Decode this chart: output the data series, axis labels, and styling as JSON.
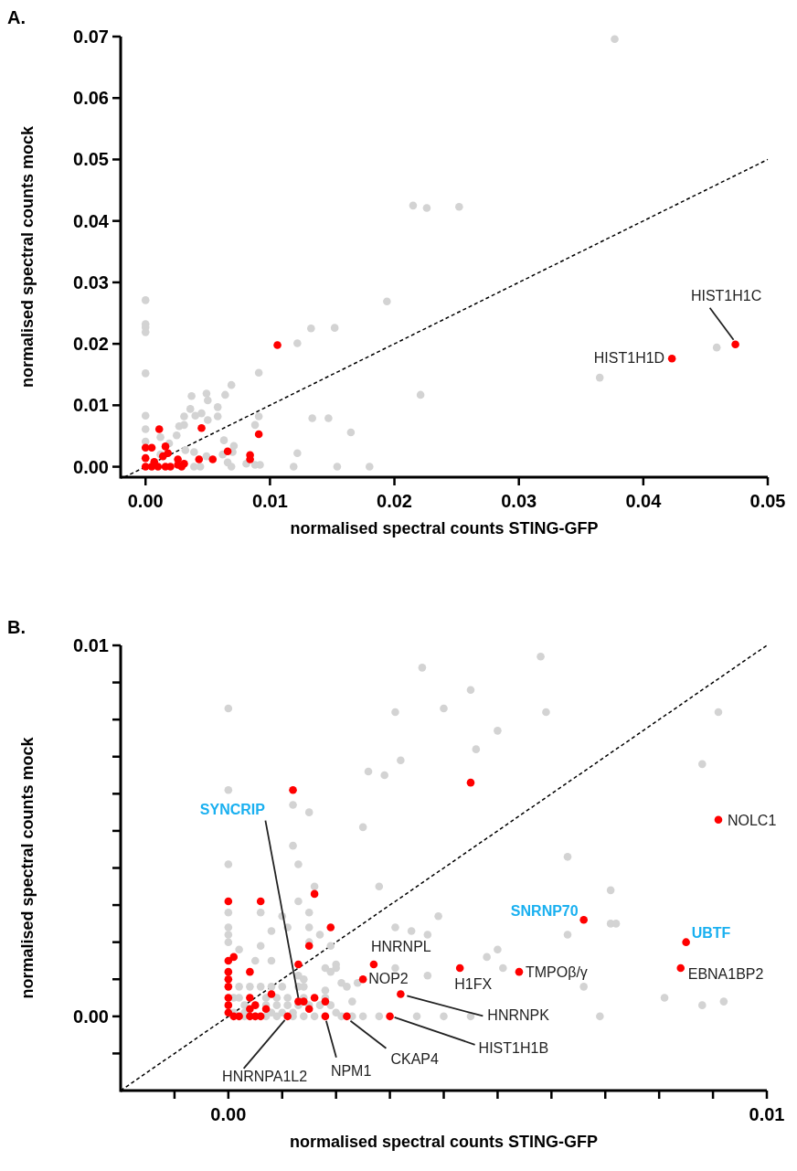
{
  "chart_data": [
    {
      "type": "scatter",
      "title": "A.",
      "xlabel": "normalised spectral counts STING-GFP",
      "ylabel": "normalised spectral counts mock",
      "xlim": [
        -0.002,
        0.05
      ],
      "ylim": [
        -0.0017,
        0.07
      ],
      "xticks": [
        {
          "value": 0,
          "label": "0.00"
        },
        0.01,
        0.02,
        0.03,
        0.04,
        0.05
      ],
      "yticks": [
        {
          "value": 0,
          "label": "0.00"
        },
        0.01,
        0.02,
        0.03,
        0.04,
        0.05,
        0.06,
        0.07
      ],
      "marker": "circle",
      "grid": false,
      "series": [
        {
          "color": "#d3d3d3",
          "x": [
            0.0377,
            0.0215,
            0.0226,
            0.0252,
            0,
            0.0194,
            0,
            0,
            0,
            0.0122,
            0.0459,
            0.0365,
            0,
            0.0091,
            0.0133,
            0.0152,
            0.0069,
            0.0221,
            0.0037,
            0.0049,
            0.0064,
            0.005,
            0.0058,
            0.0036,
            0.0045,
            0.004,
            0.0031,
            0.0058,
            0.005,
            0,
            0.0091,
            0.0134,
            0.0147,
            0.0027,
            0.0031,
            0.0088,
            0.0165,
            0,
            0.0025,
            0.0012,
            0,
            0.0063,
            0.0071,
            0.0122,
            0.0032,
            0.0039,
            0.0049,
            0.007,
            0.0062,
            0.0081,
            0.0088,
            0.0092,
            0.0119,
            0.0154,
            0.018,
            0.0069,
            0.0044,
            0.0039,
            0.0066,
            0.0019,
            0.0012
          ],
          "values": [
            0.0696,
            0.0425,
            0.0421,
            0.0423,
            0.0271,
            0.0269,
            0.0232,
            0.0227,
            0.0219,
            0.0201,
            0.0194,
            0.0145,
            0.0152,
            0.0153,
            0.0225,
            0.0226,
            0.0133,
            0.0117,
            0.0115,
            0.0119,
            0.0117,
            0.0108,
            0.0097,
            0.0094,
            0.0087,
            0.0083,
            0.0082,
            0.0082,
            0.0076,
            0.0083,
            0.0082,
            0.0079,
            0.0079,
            0.0066,
            0.0068,
            0.0068,
            0.0056,
            0.0061,
            0.0051,
            0.0048,
            0.0041,
            0.0043,
            0.0034,
            0.0022,
            0.0027,
            0.0024,
            0.0017,
            0.0024,
            0.002,
            0.0005,
            0.0003,
            0.0003,
            0,
            0,
            0,
            0,
            0,
            0,
            0.0007,
            0.0038,
            0.002
          ]
        },
        {
          "color": "#ff0000",
          "x": [
            0.0474,
            0.0423,
            0.0106,
            0.0011,
            0.0045,
            0.0091,
            0,
            0.0005,
            0.0016,
            0.0066,
            0.0084,
            0.0084,
            0.0043,
            0.0054,
            0.0026,
            0.0031,
            0.0029,
            0.0018,
            0.0014,
            0,
            0,
            0.0005,
            0.001,
            0.0016,
            0.002,
            0.0007,
            0.0026
          ],
          "values": [
            0.0199,
            0.0176,
            0.0198,
            0.0061,
            0.0063,
            0.0053,
            0.0031,
            0.0031,
            0.0033,
            0.0025,
            0.0019,
            0.0012,
            0.0012,
            0.0012,
            0.0012,
            0.0005,
            0,
            0.0022,
            0.0017,
            0.0014,
            0,
            0,
            0,
            0,
            0,
            0.0008,
            0.0003
          ]
        },
        {
          "type": "line",
          "color": "#000000",
          "line_style": "dashed",
          "marker": "none",
          "x": [
            -0.0017,
            0.05
          ],
          "values": [
            -0.0017,
            0.05
          ]
        }
      ],
      "annotations": [
        {
          "text": "HIST1H1C",
          "x": 0.0474,
          "y": 0.0199
        },
        {
          "text": "HIST1H1D",
          "x": 0.0423,
          "y": 0.0176
        }
      ]
    },
    {
      "type": "scatter",
      "title": "B.",
      "xlabel": "normalised spectral counts STING-GFP",
      "ylabel": "normalised spectral counts mock",
      "xlim": [
        -0.002,
        0.01
      ],
      "ylim": [
        -0.002,
        0.01
      ],
      "xticks": [
        {
          "value": -0.001,
          "label": null
        },
        {
          "value": 0,
          "label": "0.00"
        },
        {
          "value": 0.001,
          "label": null
        },
        {
          "value": 0.002,
          "label": null
        },
        {
          "value": 0.003,
          "label": null
        },
        {
          "value": 0.004,
          "label": null
        },
        {
          "value": 0.005,
          "label": null
        },
        {
          "value": 0.006,
          "label": null
        },
        {
          "value": 0.007,
          "label": null
        },
        {
          "value": 0.008,
          "label": null
        },
        {
          "value": 0.009,
          "label": null
        },
        0.01
      ],
      "yticks": [
        {
          "value": -0.001,
          "label": null
        },
        {
          "value": 0,
          "label": "0.00"
        },
        {
          "value": 0.001,
          "label": null
        },
        {
          "value": 0.002,
          "label": null
        },
        {
          "value": 0.003,
          "label": null
        },
        {
          "value": 0.004,
          "label": null
        },
        {
          "value": 0.005,
          "label": null
        },
        {
          "value": 0.006,
          "label": null
        },
        {
          "value": 0.007,
          "label": null
        },
        {
          "value": 0.008,
          "label": null
        },
        {
          "value": 0.009,
          "label": null
        },
        0.01
      ],
      "marker": "circle",
      "grid": false,
      "series": [
        {
          "color": "#d3d3d3",
          "x": [
            0.0058,
            0.0036,
            0.0045,
            0,
            0.0031,
            0.004,
            0.0059,
            0.0091,
            0.005,
            0.0046,
            0.0032,
            0.0026,
            0.0029,
            0.0088,
            0,
            0.0012,
            0.0015,
            0.0025,
            0.0012,
            0,
            0.0013,
            0.0063,
            0.0028,
            0.0016,
            0.0071,
            0.0039,
            0.0071,
            0.0072,
            0.0063,
            0.0031,
            0.0034,
            0.0037,
            0.005,
            0.0048,
            0.0051,
            0.0066,
            0.0081,
            0.0088,
            0.0092,
            0.0069,
            0.0045,
            0.004,
            0.0035,
            0.0028,
            0.0037,
            0.0031,
            0,
            0.0006,
            0.0013,
            0.0015,
            0,
            0,
            0,
            0.0002,
            0.0008,
            0.001,
            0.0011,
            0.0006,
            0.0008,
            0.0005,
            0.0015,
            0.0015,
            0.0017,
            0.0019,
            0.002,
            0.002,
            0.0018,
            0.0019,
            0.0021,
            0.0022,
            0.0023,
            0.0018,
            0.0018,
            0.0024,
            0.0013,
            0.0014,
            0.0014,
            0.0002,
            0.0004,
            0.0006,
            0.0008,
            0.001,
            0.0013,
            0.0001,
            0.0002,
            0.0007,
            0.0009,
            0.0011,
            0.0014,
            0.0003,
            0.0007,
            0.0009,
            0.0011,
            0.0013,
            0.0015,
            0.0017,
            0.0019,
            0.0003,
            0.0005,
            0.0007,
            0.0009,
            0.0012,
            0.0014,
            0.0016,
            0.0018,
            0.0021,
            0.0023,
            0.0025,
            0.0001,
            0.0003,
            0.0008,
            0.001,
            0.0012,
            0.002
          ],
          "values": [
            0.0097,
            0.0094,
            0.0088,
            0.0083,
            0.0082,
            0.0083,
            0.0082,
            0.0082,
            0.0077,
            0.0072,
            0.0069,
            0.0066,
            0.0065,
            0.0068,
            0.0061,
            0.0057,
            0.0055,
            0.0051,
            0.0046,
            0.0041,
            0.0041,
            0.0043,
            0.0035,
            0.0035,
            0.0034,
            0.0027,
            0.0025,
            0.0025,
            0.0022,
            0.0024,
            0.0023,
            0.0022,
            0.0018,
            0.0016,
            0.0013,
            0.0008,
            0.0005,
            0.0003,
            0.0004,
            0,
            0,
            0,
            0,
            0,
            0.0011,
            0.0013,
            0.0028,
            0.0028,
            0.0031,
            0.0028,
            0.0024,
            0.0022,
            0.002,
            0.0018,
            0.0023,
            0.0027,
            0.0024,
            0.0019,
            0.0015,
            0.0015,
            0.0024,
            0.002,
            0.0022,
            0.0019,
            0.0014,
            0.0013,
            0.0013,
            0.0012,
            0.0009,
            0.0008,
            0.0004,
            0.0007,
            0.0005,
            0.0009,
            0.0011,
            0.001,
            0.0008,
            0.0008,
            0.0008,
            0.0008,
            0.0008,
            0.0008,
            0.0008,
            0.0005,
            0.0005,
            0.0005,
            0.0005,
            0.0005,
            0.0005,
            0.0003,
            0.0003,
            0.0003,
            0.0003,
            0.0003,
            0.0003,
            0.0003,
            0.0003,
            0,
            0,
            0,
            0,
            0,
            0,
            0,
            0,
            0,
            0,
            0,
            0.0001,
            0.0001,
            0.0001,
            0.0001,
            0.0001,
            0.0001
          ]
        },
        {
          "color": "#ff0000",
          "x": [
            0.0091,
            0.0045,
            0.0012,
            0.0066,
            0.0085,
            0.0084,
            0.0054,
            0.0043,
            0.0027,
            0.0025,
            0.0032,
            0.003,
            0.0022,
            0.0018,
            0.0011,
            0.0013,
            0.0014,
            0.0016,
            0,
            0.0006,
            0.0019,
            0.0015,
            0.0013,
            0,
            0.0001,
            0.0004,
            0,
            0,
            0,
            0.0008,
            0.0004,
            0,
            0,
            0.0005,
            0.0007,
            0.0016,
            0.0018,
            0.0015,
            0.0001,
            0.0002,
            0.0004,
            0.0005,
            0.0006,
            0,
            0.0004
          ],
          "values": [
            0.0053,
            0.0063,
            0.0061,
            0.0026,
            0.002,
            0.0013,
            0.0012,
            0.0013,
            0.0014,
            0.001,
            0.0006,
            0,
            0,
            0,
            0,
            0.0004,
            0.0004,
            0.0033,
            0.0031,
            0.0031,
            0.0024,
            0.0019,
            0.0014,
            0.0015,
            0.0016,
            0.0012,
            0.0012,
            0.001,
            0.0008,
            0.0006,
            0.0005,
            0.0005,
            0.0003,
            0.0003,
            0.0002,
            0.0005,
            0.0004,
            0.0002,
            0,
            0,
            0,
            0,
            0,
            0.0001,
            0.0002
          ]
        },
        {
          "type": "line",
          "color": "#000000",
          "line_style": "dashed",
          "marker": "none",
          "x": [
            -0.002,
            0.01
          ],
          "values": [
            -0.002,
            0.01
          ]
        }
      ],
      "annotations": [
        {
          "text": "SYNCRIP",
          "x": 0.0013,
          "y": 0.0004
        },
        {
          "text": "NOLC1",
          "x": 0.0091,
          "y": 0.0053
        },
        {
          "text": "SNRNP70",
          "x": 0.0066,
          "y": 0.0026
        },
        {
          "text": "UBTF",
          "x": 0.0085,
          "y": 0.002
        },
        {
          "text": "EBNA1BP2",
          "x": 0.0084,
          "y": 0.0013
        },
        {
          "text": "TMPOβ/γ",
          "x": 0.0054,
          "y": 0.0012
        },
        {
          "text": "H1FX",
          "x": 0.0043,
          "y": 0.0013
        },
        {
          "text": "HNRNPL",
          "x": 0.0027,
          "y": 0.0014
        },
        {
          "text": "NOP2",
          "x": 0.0025,
          "y": 0.001
        },
        {
          "text": "HNRNPK",
          "x": 0.0032,
          "y": 0.0006
        },
        {
          "text": "HIST1H1B",
          "x": 0.003,
          "y": 0
        },
        {
          "text": "CKAP4",
          "x": 0.0022,
          "y": 0
        },
        {
          "text": "NPM1",
          "x": 0.0018,
          "y": 0
        },
        {
          "text": "HNRNPA1L2",
          "x": 0.0011,
          "y": 0
        }
      ]
    }
  ]
}
